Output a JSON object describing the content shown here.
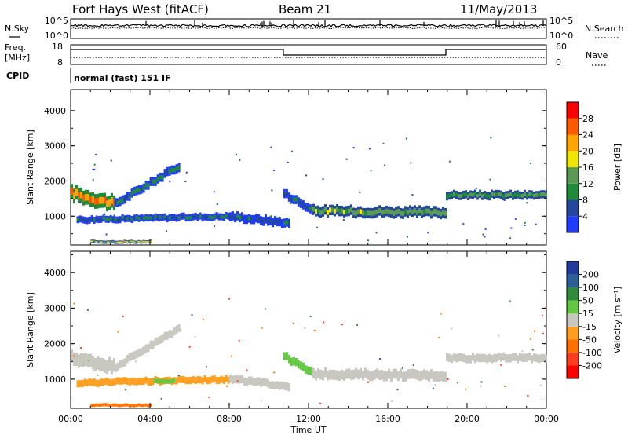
{
  "header": {
    "station": "Fort Hays West (fitACF)",
    "beam": "Beam 21",
    "date": "11/May/2013"
  },
  "status_panels": {
    "nsky_label": "N.Sky",
    "nsearch_label": "N.Search",
    "noise_ticks": [
      "10^5",
      "10^0"
    ],
    "freq_label": "Freq.",
    "freq_unit": "[MHz]",
    "freq_ticks": [
      "18",
      "8"
    ],
    "nave_label": "Nave",
    "nave_ticks": [
      "60",
      "0"
    ],
    "cpid_label": "CPID",
    "cpid_text": "normal (fast) 151 IF",
    "freq_steps": [
      {
        "start": 0.0,
        "end": 10.73,
        "level": "high"
      },
      {
        "start": 10.73,
        "end": 18.93,
        "level": "low"
      },
      {
        "start": 18.93,
        "end": 24.0,
        "level": "high"
      }
    ]
  },
  "chart_data": [
    {
      "type": "heatmap",
      "title": "Power",
      "ylabel": "Slant Range [km]",
      "xlabel": "Time UT",
      "x_ticks": [
        "00:00",
        "04:00",
        "08:00",
        "12:00",
        "16:00",
        "20:00",
        "00:00"
      ],
      "xlim": [
        0,
        24
      ],
      "y_ticks": [
        "1000",
        "2000",
        "3000",
        "4000"
      ],
      "ylim": [
        180,
        4600
      ],
      "colorbar_label": "Power [dB]",
      "colorbar_ticks": [
        "4",
        "8",
        "12",
        "16",
        "20",
        "24",
        "28"
      ],
      "colorbar_colors": [
        "#1e3cff",
        "#23479c",
        "#1e8a3a",
        "#5a9a55",
        "#f0e600",
        "#ffa400",
        "#ff5a00",
        "#ff0000"
      ],
      "bands": [
        {
          "t0": 0.0,
          "t1": 2.2,
          "r0": 1650,
          "r1": 1350,
          "thick": 420,
          "power": 24
        },
        {
          "t0": 2.2,
          "t1": 5.5,
          "r0": 1350,
          "r1": 2450,
          "thick": 260,
          "power": 9
        },
        {
          "t0": 0.3,
          "t1": 8.0,
          "r0": 900,
          "r1": 1000,
          "thick": 200,
          "power": 8
        },
        {
          "t0": 8.0,
          "t1": 11.0,
          "r0": 1000,
          "r1": 800,
          "thick": 260,
          "power": 6
        },
        {
          "t0": 10.73,
          "t1": 12.2,
          "r0": 1650,
          "r1": 1150,
          "thick": 260,
          "power": 8
        },
        {
          "t0": 12.2,
          "t1": 18.93,
          "r0": 1150,
          "r1": 1100,
          "thick": 300,
          "power": 14
        },
        {
          "t0": 18.93,
          "t1": 24.0,
          "r0": 1600,
          "r1": 1600,
          "thick": 230,
          "power": 12
        },
        {
          "t0": 1.0,
          "t1": 4.0,
          "r0": 270,
          "r1": 270,
          "thick": 90,
          "power": 18
        }
      ]
    },
    {
      "type": "heatmap",
      "title": "Velocity",
      "ylabel": "Slant Range [km]",
      "xlabel": "Time UT",
      "x_ticks": [
        "00:00",
        "04:00",
        "08:00",
        "12:00",
        "16:00",
        "20:00",
        "00:00"
      ],
      "xlim": [
        0,
        24
      ],
      "y_ticks": [
        "1000",
        "2000",
        "3000",
        "4000"
      ],
      "ylim": [
        180,
        4600
      ],
      "colorbar_label": "Velocity [m s⁻¹]",
      "colorbar_ticks": [
        "200",
        "100",
        "50",
        "15",
        "-15",
        "-50",
        "-100",
        "-200"
      ],
      "colorbar_colors": [
        "#1f3a9e",
        "#2c5f9a",
        "#2e8b3a",
        "#62c840",
        "#c8c8c0",
        "#ff9e1e",
        "#ff7000",
        "#ff3c1e",
        "#ff0000"
      ],
      "bands": [
        {
          "t0": 0.0,
          "t1": 2.2,
          "r0": 1600,
          "r1": 1350,
          "thick": 380,
          "velocity": 0
        },
        {
          "t0": 2.2,
          "t1": 5.5,
          "r0": 1350,
          "r1": 2450,
          "thick": 230,
          "velocity": 0
        },
        {
          "t0": 0.3,
          "t1": 8.0,
          "r0": 900,
          "r1": 1000,
          "thick": 200,
          "velocity": -20
        },
        {
          "t0": 4.2,
          "t1": 5.2,
          "r0": 950,
          "r1": 950,
          "thick": 120,
          "velocity": 30
        },
        {
          "t0": 8.0,
          "t1": 11.0,
          "r0": 1000,
          "r1": 800,
          "thick": 230,
          "velocity": 0
        },
        {
          "t0": 10.73,
          "t1": 12.2,
          "r0": 1650,
          "r1": 1150,
          "thick": 230,
          "velocity": 30
        },
        {
          "t0": 12.2,
          "t1": 18.93,
          "r0": 1150,
          "r1": 1100,
          "thick": 280,
          "velocity": 0
        },
        {
          "t0": 18.93,
          "t1": 24.0,
          "r0": 1600,
          "r1": 1600,
          "thick": 230,
          "velocity": 0
        },
        {
          "t0": 1.0,
          "t1": 4.0,
          "r0": 270,
          "r1": 270,
          "thick": 90,
          "velocity": -60
        }
      ]
    }
  ]
}
